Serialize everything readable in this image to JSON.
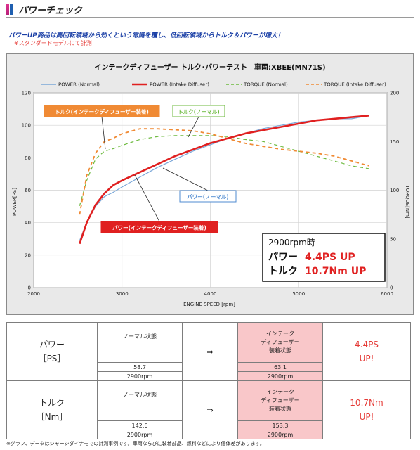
{
  "header": {
    "title": "パワーチェック"
  },
  "lead": {
    "text": "パワーUP商品は高回転領域から効くという常識を覆し、低回転領域からトルク＆パワーが増大！",
    "note": "※スタンダードモデルにて計測"
  },
  "chart_data": {
    "type": "line",
    "title": "インテークディフューザー トルク･パワーテスト　車両:XBEE(MN71S)",
    "xlabel": "ENGINE SPEED [rpm]",
    "ylabel": "POWER[PS]",
    "y2label": "TORQUE[Nm]",
    "xlim": [
      2000,
      6000
    ],
    "ylim": [
      0,
      120
    ],
    "y2lim": [
      0,
      200
    ],
    "xticks": [
      "2000",
      "3000",
      "4000",
      "5000",
      "6000"
    ],
    "yticks": [
      "0",
      "20",
      "40",
      "60",
      "80",
      "100",
      "120"
    ],
    "y2ticks": [
      "0",
      "50",
      "100",
      "150",
      "200"
    ],
    "grid": true,
    "legend_position": "top",
    "series": [
      {
        "name": "POWER (Normal)",
        "axis": "left",
        "color": "#7aa7d8",
        "dash": "solid",
        "x": [
          2520,
          2600,
          2700,
          2800,
          2900,
          3000,
          3200,
          3400,
          3600,
          3800,
          4000,
          4200,
          4400,
          4600,
          4800,
          5000,
          5200,
          5400,
          5600,
          5800
        ],
        "y": [
          29,
          40,
          50,
          56,
          58.7,
          62,
          68,
          74,
          79,
          84,
          88,
          92,
          95,
          98,
          100,
          102,
          103,
          104,
          104,
          106
        ]
      },
      {
        "name": "POWER (Intake Diffuser)",
        "axis": "left",
        "color": "#e02020",
        "dash": "solid",
        "x": [
          2520,
          2600,
          2700,
          2800,
          2900,
          3000,
          3200,
          3400,
          3600,
          3800,
          4000,
          4200,
          4400,
          4600,
          4800,
          5000,
          5200,
          5400,
          5600,
          5800
        ],
        "y": [
          27,
          40,
          51,
          58,
          63.1,
          66,
          71,
          76,
          81,
          85,
          89,
          92,
          95,
          97,
          99,
          101,
          103,
          104,
          105,
          106
        ]
      },
      {
        "name": "TORQUE (Normal)",
        "axis": "right",
        "color": "#6cba3e",
        "dash": "dash",
        "x": [
          2520,
          2600,
          2700,
          2800,
          2900,
          3000,
          3200,
          3400,
          3600,
          3800,
          4000,
          4200,
          4400,
          4600,
          4800,
          5000,
          5200,
          5400,
          5600,
          5800
        ],
        "y": [
          84,
          110,
          132,
          140,
          142.6,
          146,
          152,
          155,
          156,
          156,
          156,
          155,
          152,
          150,
          145,
          140,
          135,
          130,
          125,
          122
        ]
      },
      {
        "name": "TORQUE (Intake Diffuser)",
        "axis": "right",
        "color": "#f08a34",
        "dash": "dash",
        "x": [
          2520,
          2600,
          2700,
          2800,
          2900,
          3000,
          3200,
          3400,
          3600,
          3800,
          4000,
          4200,
          4400,
          4600,
          4800,
          5000,
          5200,
          5400,
          5600,
          5800
        ],
        "y": [
          75,
          115,
          138,
          150,
          153.3,
          158,
          163,
          163,
          162,
          161,
          158,
          153,
          148,
          145,
          142,
          140,
          138,
          135,
          130,
          125
        ]
      }
    ],
    "callouts": [
      {
        "text": "トルク(インテークディフューザー装着)",
        "color": "#f08a34"
      },
      {
        "text": "トルク(ノーマル)",
        "color": "#6cba3e"
      },
      {
        "text": "パワー(ノーマル)",
        "color": "#4f8bd1"
      },
      {
        "text": "パワー(インテークディフューザー装着)",
        "color": "#e02020"
      }
    ],
    "result_box": {
      "head": "2900rpm時",
      "power_label": "パワー",
      "power_value": "4.4PS UP",
      "torque_label": "トルク",
      "torque_value": "10.7Nm UP"
    }
  },
  "tables": [
    {
      "cat": "パワー",
      "unit": "［PS］",
      "normal_label": "ノーマル状態",
      "normal_value": "58.7",
      "normal_rpm": "2900rpm",
      "arrow": "⇒",
      "mod_label_1": "インテーク",
      "mod_label_2": "ディフューザー",
      "mod_label_3": "装着状態",
      "mod_value": "63.1",
      "mod_rpm": "2900rpm",
      "gain": "4.4PS",
      "gain_up": "UP!"
    },
    {
      "cat": "トルク",
      "unit": "［Nm］",
      "normal_label": "ノーマル状態",
      "normal_value": "142.6",
      "normal_rpm": "2900rpm",
      "arrow": "⇒",
      "mod_label_1": "インテーク",
      "mod_label_2": "ディフューザー",
      "mod_label_3": "装着状態",
      "mod_value": "153.3",
      "mod_rpm": "2900rpm",
      "gain": "10.7Nm",
      "gain_up": "UP!"
    }
  ],
  "footnote": "※グラフ、データはシャーシダイナモでの計測事例です。車両ならびに装着部品、燃料などにより個体差があります。"
}
